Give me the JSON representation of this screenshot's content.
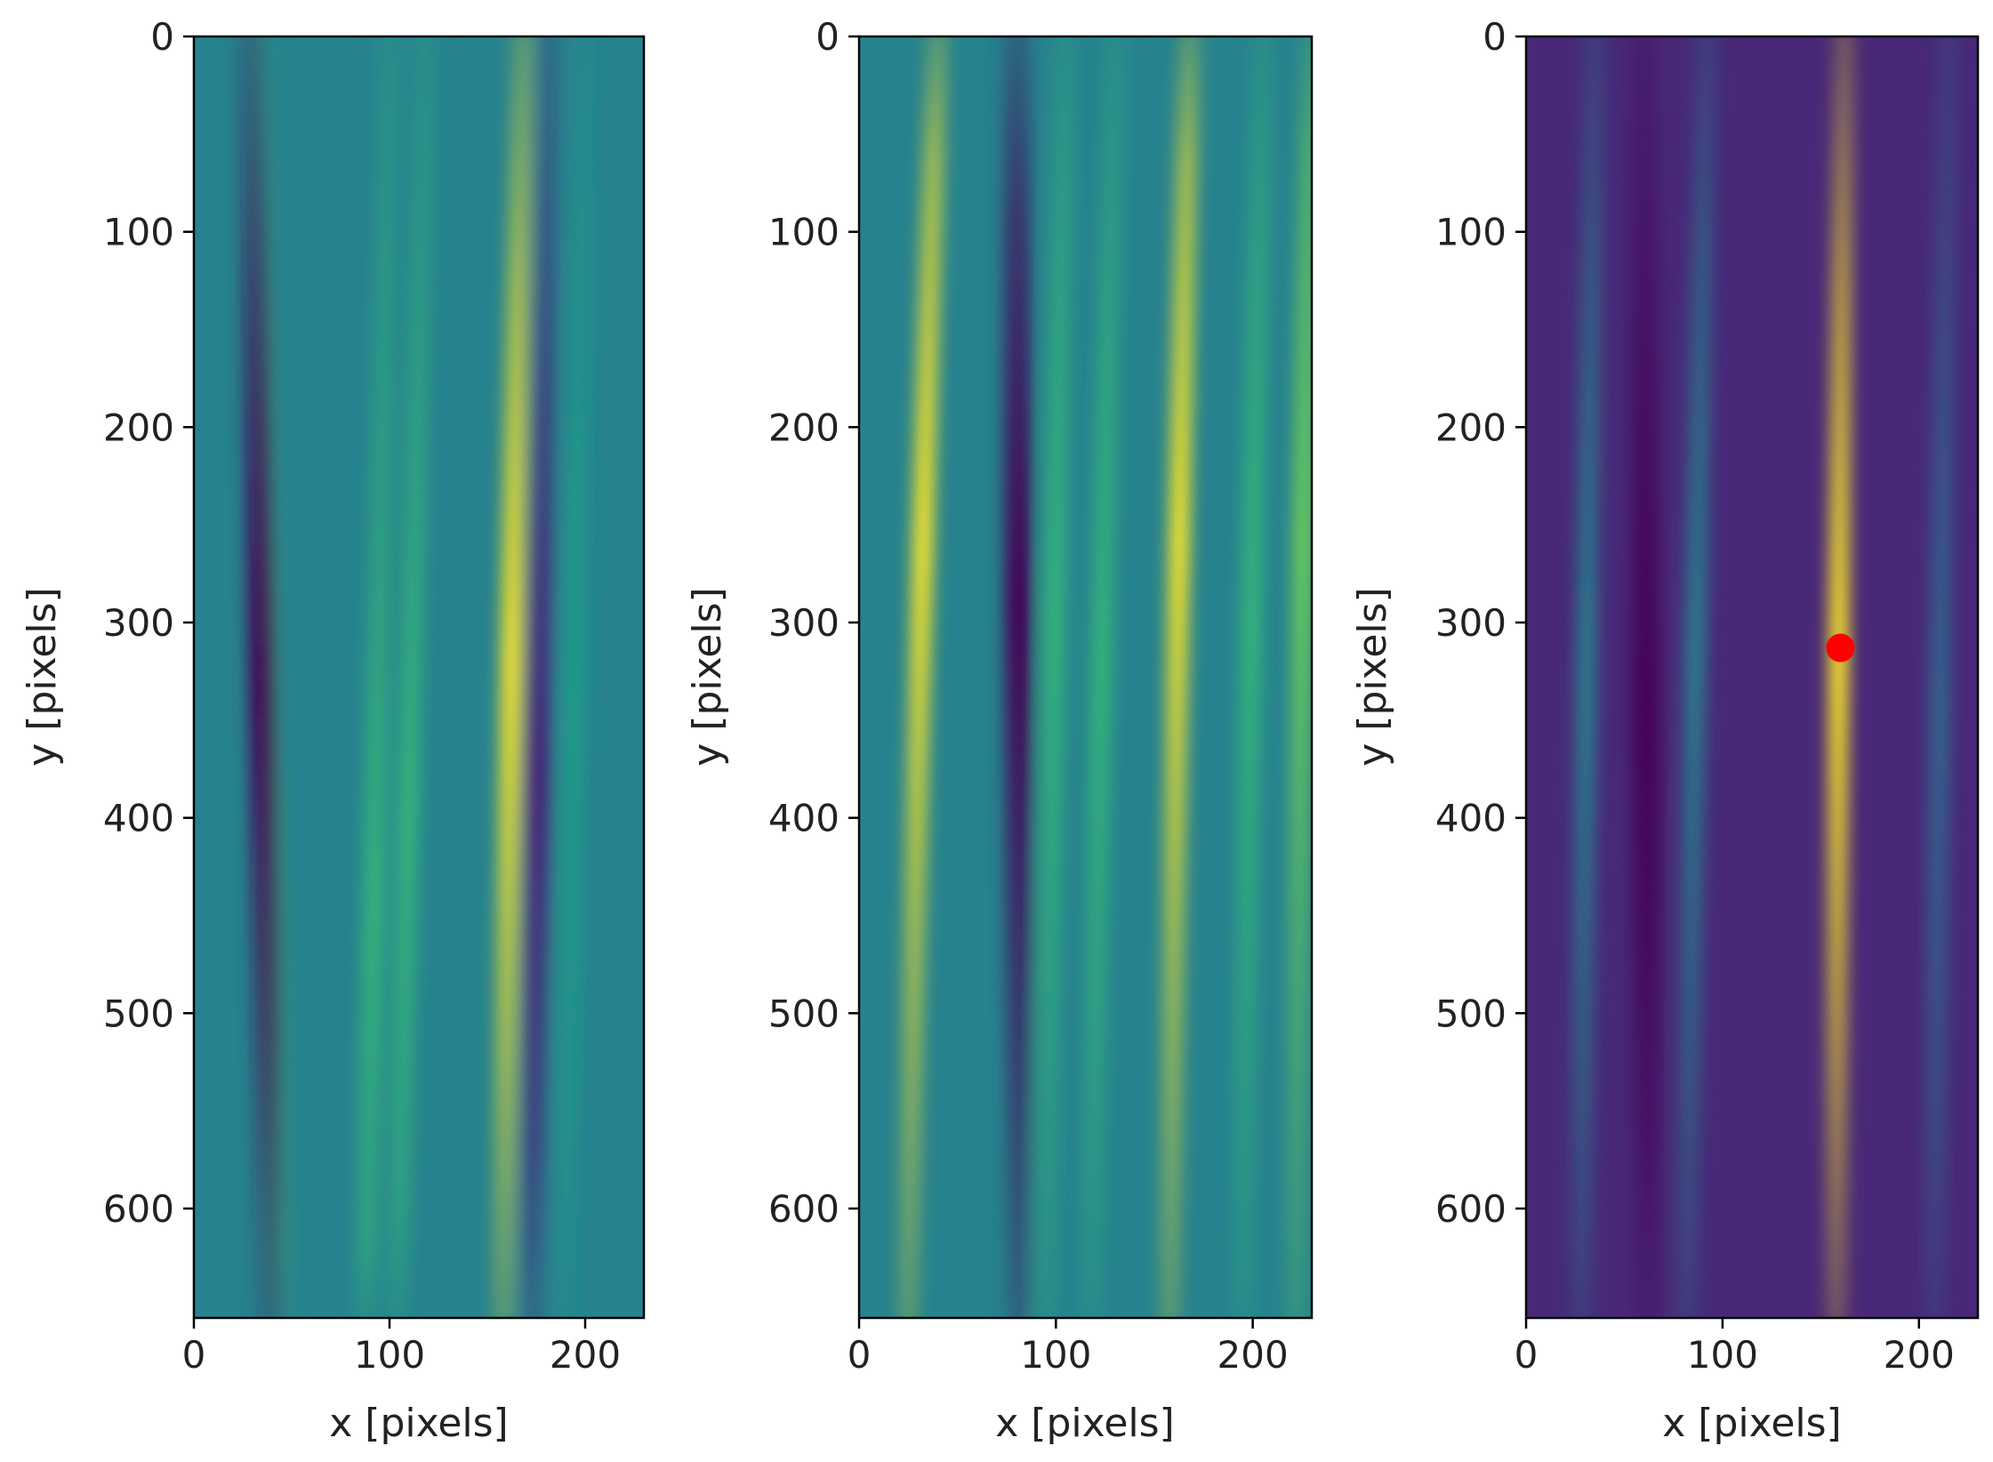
{
  "chart_data": [
    {
      "type": "heatmap",
      "colormap": "viridis",
      "xlabel": "x [pixels]",
      "ylabel": "y [pixels]",
      "xlim": [
        0,
        230
      ],
      "ylim": [
        656,
        0
      ],
      "xticks": [
        0,
        100,
        200
      ],
      "yticks": [
        0,
        100,
        200,
        300,
        400,
        500,
        600
      ],
      "background_level": 0.45,
      "ridges": [
        {
          "x_top": 35,
          "x_bottom": 45,
          "y_center": 420,
          "level": 0.68,
          "kind": "bright"
        },
        {
          "x_top": 30,
          "x_bottom": 40,
          "y_center": 330,
          "level": 0.0,
          "kind": "dark"
        },
        {
          "x_top": 100,
          "x_bottom": 88,
          "y_center": 450,
          "level": 0.72,
          "kind": "bright"
        },
        {
          "x_top": 118,
          "x_bottom": 104,
          "y_center": 400,
          "level": 0.65,
          "kind": "bright"
        },
        {
          "x_top": 168,
          "x_bottom": 158,
          "y_center": 320,
          "level": 1.0,
          "kind": "bright"
        },
        {
          "x_top": 180,
          "x_bottom": 172,
          "y_center": 380,
          "level": 0.1,
          "kind": "dark"
        },
        {
          "x_top": 200,
          "x_bottom": 190,
          "y_center": 350,
          "level": 0.6,
          "kind": "bright"
        }
      ]
    },
    {
      "type": "heatmap",
      "colormap": "viridis",
      "xlabel": "x [pixels]",
      "ylabel": "y [pixels]",
      "xlim": [
        0,
        230
      ],
      "ylim": [
        656,
        0
      ],
      "xticks": [
        0,
        100,
        200
      ],
      "yticks": [
        0,
        100,
        200,
        300,
        400,
        500,
        600
      ],
      "background_level": 0.45,
      "ridges": [
        {
          "x_top": 40,
          "x_bottom": 25,
          "y_center": 260,
          "level": 0.95,
          "kind": "bright"
        },
        {
          "x_top": 80,
          "x_bottom": 82,
          "y_center": 290,
          "level": 0.0,
          "kind": "dark"
        },
        {
          "x_top": 105,
          "x_bottom": 95,
          "y_center": 300,
          "level": 0.72,
          "kind": "bright"
        },
        {
          "x_top": 130,
          "x_bottom": 118,
          "y_center": 320,
          "level": 0.7,
          "kind": "bright"
        },
        {
          "x_top": 168,
          "x_bottom": 158,
          "y_center": 260,
          "level": 1.0,
          "kind": "bright"
        },
        {
          "x_top": 205,
          "x_bottom": 195,
          "y_center": 300,
          "level": 0.68,
          "kind": "bright"
        },
        {
          "x_top": 230,
          "x_bottom": 222,
          "y_center": 260,
          "level": 0.78,
          "kind": "bright"
        }
      ]
    },
    {
      "type": "heatmap",
      "colormap": "viridis",
      "xlabel": "x [pixels]",
      "ylabel": "y [pixels]",
      "xlim": [
        0,
        230
      ],
      "ylim": [
        656,
        0
      ],
      "xticks": [
        0,
        100,
        200
      ],
      "yticks": [
        0,
        100,
        200,
        300,
        400,
        500,
        600
      ],
      "background_level": 0.08,
      "ridges": [
        {
          "x_top": 35,
          "x_bottom": 28,
          "y_center": 330,
          "level": 0.45,
          "kind": "bright"
        },
        {
          "x_top": 60,
          "x_bottom": 62,
          "y_center": 350,
          "level": 0.0,
          "kind": "dark"
        },
        {
          "x_top": 92,
          "x_bottom": 82,
          "y_center": 320,
          "level": 0.4,
          "kind": "bright"
        },
        {
          "x_top": 162,
          "x_bottom": 158,
          "y_center": 320,
          "level": 1.0,
          "kind": "bright"
        },
        {
          "x_top": 215,
          "x_bottom": 208,
          "y_center": 350,
          "level": 0.3,
          "kind": "bright"
        }
      ],
      "marker": {
        "x": 160,
        "y": 313,
        "color": "#ff0000"
      }
    }
  ]
}
